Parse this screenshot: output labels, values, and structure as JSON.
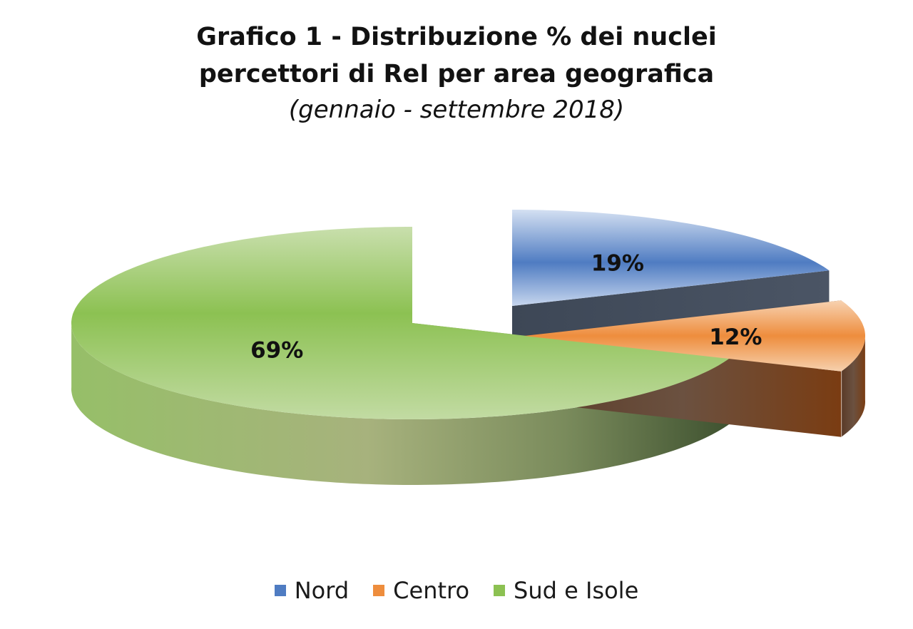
{
  "chart_data": {
    "type": "pie",
    "title_lines": [
      "Grafico 1 - Distribuzione % dei nuclei",
      "percettori di ReI per area geografica"
    ],
    "subtitle": "(gennaio - settembre 2018)",
    "categories": [
      "Nord",
      "Centro",
      "Sud e Isole"
    ],
    "values": [
      19,
      12,
      69
    ],
    "data_labels": [
      "19%",
      "12%",
      "69%"
    ],
    "colors": {
      "Nord": "#4f7cc2",
      "Centro": "#ee8d3d",
      "Sud e Isole": "#8cc152"
    },
    "legend_position": "bottom",
    "style": "3d-exploded"
  }
}
